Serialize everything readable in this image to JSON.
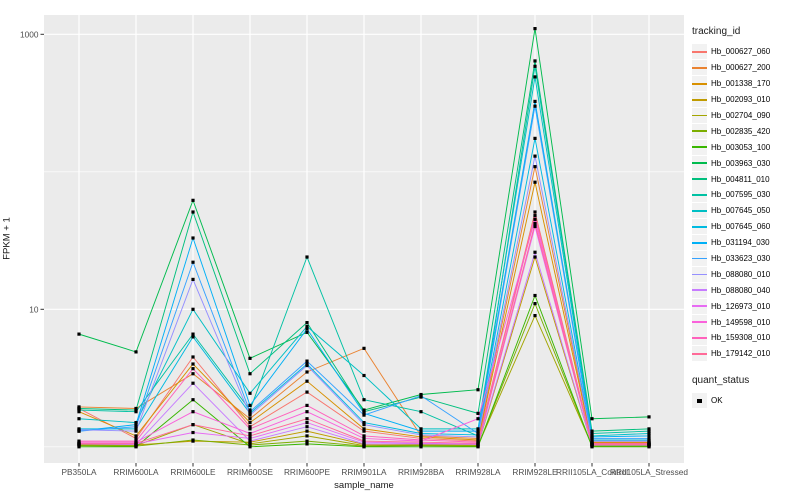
{
  "chart_data": {
    "type": "line",
    "title": "",
    "xlabel": "sample_name",
    "ylabel": "FPKM + 1",
    "y_scale": "log10",
    "ylim": [
      1,
      1200
    ],
    "y_ticks": [
      10,
      1000
    ],
    "y_gridlines_minor": [
      1,
      100
    ],
    "grid": true,
    "point_marker": "black-square",
    "legend": {
      "title": "tracking_id",
      "position": "right"
    },
    "quant_status": {
      "title": "quant_status",
      "items": [
        {
          "label": "OK",
          "marker": "black-square"
        }
      ]
    },
    "categories": [
      "PB350LA",
      "RRIM600LA",
      "RRIM600LE",
      "RRIM600SE",
      "RRIM600PE",
      "RRIM901LA",
      "RRIM928BA",
      "RRIM928LA",
      "RRIM928LE",
      "RRII105LA_Control",
      "RRII105LA_Stressed"
    ],
    "series": [
      {
        "name": "Hb_000627_060",
        "color": "#F8766D",
        "values": [
          1.9,
          1.15,
          4.5,
          1.4,
          2.5,
          1.3,
          1.15,
          1.1,
          51,
          1.06,
          1.06
        ]
      },
      {
        "name": "Hb_000627_200",
        "color": "#EA8331",
        "values": [
          1.95,
          1.9,
          3.4,
          1.6,
          3.5,
          5.2,
          1.2,
          1.15,
          109,
          1.08,
          1.08
        ]
      },
      {
        "name": "Hb_001338_170",
        "color": "#D89000",
        "values": [
          1.8,
          1.2,
          4.0,
          1.5,
          3.0,
          1.35,
          1.18,
          1.12,
          84,
          1.07,
          1.07
        ]
      },
      {
        "name": "Hb_002093_010",
        "color": "#C09B00",
        "values": [
          1.04,
          1.03,
          1.1,
          1.08,
          1.3,
          1.04,
          1.04,
          1.03,
          24,
          1.03,
          1.03
        ]
      },
      {
        "name": "Hb_002704_090",
        "color": "#A3A500",
        "values": [
          1.03,
          1.02,
          1.45,
          1.05,
          1.2,
          1.02,
          1.03,
          1.02,
          9,
          1.02,
          1.02
        ]
      },
      {
        "name": "Hb_002835_420",
        "color": "#7CAE00",
        "values": [
          1.02,
          1.01,
          1.12,
          1.03,
          1.1,
          1.01,
          1.02,
          1.01,
          11,
          1.01,
          1.01
        ]
      },
      {
        "name": "Hb_003053_100",
        "color": "#39B600",
        "values": [
          1.0,
          1.0,
          2.2,
          1.0,
          1.05,
          1.0,
          1.0,
          1.0,
          12.6,
          1.0,
          1.0
        ]
      },
      {
        "name": "Hb_003963_030",
        "color": "#00BB4E",
        "values": [
          6.6,
          4.9,
          62,
          4.4,
          6.8,
          1.85,
          2.4,
          2.6,
          1100,
          1.6,
          1.65
        ]
      },
      {
        "name": "Hb_004811_010",
        "color": "#00BF7D",
        "values": [
          1.9,
          1.85,
          51,
          3.4,
          8.0,
          1.8,
          2.3,
          1.75,
          640,
          1.3,
          1.35
        ]
      },
      {
        "name": "Hb_007595_030",
        "color": "#00C1A3",
        "values": [
          1.85,
          1.8,
          6.6,
          1.85,
          24,
          2.2,
          1.8,
          1.2,
          585,
          1.25,
          1.3
        ]
      },
      {
        "name": "Hb_007645_050",
        "color": "#00BFC4",
        "values": [
          1.6,
          1.5,
          10,
          2.45,
          7.5,
          3.3,
          1.35,
          1.35,
          490,
          1.2,
          1.25
        ]
      },
      {
        "name": "Hb_007645_060",
        "color": "#00BAE0",
        "values": [
          1.35,
          1.35,
          6.3,
          1.75,
          4.0,
          1.5,
          1.25,
          1.22,
          175,
          1.12,
          1.12
        ]
      },
      {
        "name": "Hb_031194_030",
        "color": "#00B0F6",
        "values": [
          1.3,
          1.45,
          33,
          2.0,
          7.2,
          1.75,
          1.3,
          1.3,
          325,
          1.18,
          1.2
        ]
      },
      {
        "name": "Hb_033623_030",
        "color": "#35A2FF",
        "values": [
          1.3,
          1.4,
          22,
          1.8,
          4.2,
          1.7,
          2.35,
          1.25,
          300,
          1.15,
          1.15
        ]
      },
      {
        "name": "Hb_088080_010",
        "color": "#9590FF",
        "values": [
          1.33,
          1.3,
          16.5,
          1.7,
          3.9,
          1.45,
          1.22,
          1.18,
          130,
          1.1,
          1.1
        ]
      },
      {
        "name": "Hb_088080_040",
        "color": "#C77CFF",
        "values": [
          1.05,
          1.04,
          2.9,
          1.1,
          1.4,
          1.05,
          1.05,
          1.04,
          26,
          1.03,
          1.03
        ]
      },
      {
        "name": "Hb_126973_010",
        "color": "#E76BF3",
        "values": [
          1.05,
          1.05,
          1.27,
          1.15,
          1.5,
          1.08,
          1.06,
          1.05,
          40,
          1.04,
          1.04
        ]
      },
      {
        "name": "Hb_149598_010",
        "color": "#FA62DB",
        "values": [
          1.08,
          1.08,
          1.8,
          1.25,
          1.8,
          1.15,
          1.1,
          1.6,
          45,
          1.05,
          1.05
        ]
      },
      {
        "name": "Hb_159308_010",
        "color": "#FF62BC",
        "values": [
          1.1,
          1.1,
          3.7,
          1.35,
          2.0,
          1.2,
          1.12,
          1.08,
          48,
          1.05,
          1.05
        ]
      },
      {
        "name": "Hb_179142_010",
        "color": "#FF6A98",
        "values": [
          1.06,
          1.06,
          1.45,
          1.2,
          1.6,
          1.1,
          1.08,
          1.06,
          42,
          1.04,
          1.04
        ]
      }
    ]
  },
  "style_colors": {
    "panel_background": "#EBEBEB",
    "gridline": "#FFFFFF",
    "legend_key_background": "#F2F2F2",
    "tick": "#333333",
    "point": "#000000"
  }
}
